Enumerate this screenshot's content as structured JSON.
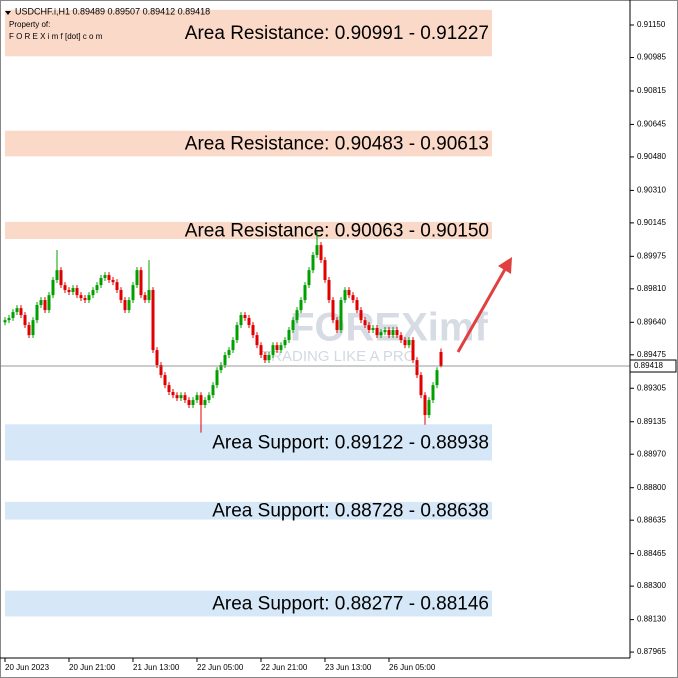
{
  "chart_data": {
    "type": "candlestick",
    "header": "USDCHF.i,H1  0.89489 0.89507 0.89412 0.89418",
    "owner_title": "Property of:",
    "owner": "F O R E X i m f [dot] c o m",
    "watermark": "FOREXimf",
    "watermark_tagline": "TRADING LIKE A PRO",
    "up_color": "#00a000",
    "down_color": "#e00000",
    "xlim": [
      -1.25,
      156.25
    ],
    "ylim": [
      0.87935,
      0.91277
    ],
    "xticks": [
      {
        "value": 0,
        "label": "20 Jun 2023"
      },
      {
        "value": 16,
        "label": "20 Jun 21:00"
      },
      {
        "value": 32,
        "label": "21 Jun 13:00"
      },
      {
        "value": 48,
        "label": "22 Jun 05:00"
      },
      {
        "value": 64,
        "label": "22 Jun 21:00"
      },
      {
        "value": 80,
        "label": "23 Jun 13:00"
      },
      {
        "value": 96,
        "label": "26 Jun 05:00"
      }
    ],
    "yticks": [
      {
        "value": 0.9115,
        "label": "0.91150"
      },
      0.90985,
      0.90815,
      0.90645,
      {
        "value": 0.9048,
        "label": "0.90480"
      },
      {
        "value": 0.9031,
        "label": "0.90310"
      },
      0.90145,
      0.89975,
      {
        "value": 0.8981,
        "label": "0.89810"
      },
      {
        "value": 0.8964,
        "label": "0.89640"
      },
      0.89475,
      0.89305,
      0.89135,
      {
        "value": 0.8897,
        "label": "0.88970"
      },
      {
        "value": 0.888,
        "label": "0.88800"
      },
      0.88635,
      0.88465,
      {
        "value": 0.883,
        "label": "0.88300"
      },
      {
        "value": 0.8813,
        "label": "0.88130"
      },
      0.87965
    ],
    "current_price": {
      "value": 0.89418,
      "label": "0.89418"
    },
    "zones": [
      {
        "label": "Area Resistance: 0.90991 - 0.91227",
        "from": 0.90991,
        "to": 0.91227,
        "color": "#fbd9c8"
      },
      {
        "label": "Area Resistance: 0.90483 - 0.90613",
        "from": 0.90483,
        "to": 0.90613,
        "color": "#fbd9c8"
      },
      {
        "label": "Area Resistance: 0.90063 - 0.90150",
        "from": 0.90063,
        "to": 0.9015,
        "color": "#fbd9c8"
      },
      {
        "label": "Area Support: 0.89122 - 0.88938",
        "from": 0.88938,
        "to": 0.89122,
        "color": "#d6e8f8"
      },
      {
        "label": "Area Support: 0.88728 - 0.88638",
        "from": 0.88638,
        "to": 0.88728,
        "color": "#d6e8f8"
      },
      {
        "label": "Area Support: 0.88277 - 0.88146",
        "from": 0.88146,
        "to": 0.88277,
        "color": "#d6e8f8"
      }
    ],
    "open": [
      0.8964,
      0.89651,
      0.89662,
      0.89692,
      0.89712,
      0.89677,
      0.89626,
      0.89575,
      0.89651,
      0.89728,
      0.89753,
      0.89702,
      0.89778,
      0.89855,
      0.89905,
      0.89829,
      0.89804,
      0.89794,
      0.89814,
      0.89778,
      0.89763,
      0.89753,
      0.89778,
      0.89804,
      0.89829,
      0.89865,
      0.8988,
      0.89855,
      0.89844,
      0.89804,
      0.89753,
      0.89702,
      0.89753,
      0.89829,
      0.89905,
      0.89778,
      0.89753,
      0.89804,
      0.89499,
      0.89423,
      0.89372,
      0.89321,
      0.89286,
      0.8927,
      0.89255,
      0.8927,
      0.89245,
      0.8922,
      0.89245,
      0.8927,
      0.8922,
      0.89245,
      0.8927,
      0.89321,
      0.89397,
      0.89423,
      0.89474,
      0.89499,
      0.8955,
      0.89626,
      0.89677,
      0.89662,
      0.89626,
      0.89575,
      0.89524,
      0.89474,
      0.89448,
      0.89474,
      0.89524,
      0.89499,
      0.89524,
      0.8955,
      0.89601,
      0.89651,
      0.89702,
      0.89753,
      0.89829,
      0.89905,
      0.89982,
      0.90032,
      0.89956,
      0.89855,
      0.89753,
      0.89651,
      0.89601,
      0.89753,
      0.89804,
      0.89778,
      0.89753,
      0.89702,
      0.89651,
      0.89626,
      0.89601,
      0.89611,
      0.89575,
      0.8959,
      0.89601,
      0.89575,
      0.89601,
      0.89575,
      0.8955,
      0.89524,
      0.8955,
      0.89448,
      0.89372,
      0.8927,
      0.89169,
      0.89245,
      0.89321,
      0.89489
    ],
    "high": [
      0.89666,
      0.89677,
      0.89707,
      0.89727,
      0.89727,
      0.89692,
      0.89641,
      0.89666,
      0.89743,
      0.89768,
      0.89768,
      0.89793,
      0.8987,
      0.90007,
      0.8992,
      0.89844,
      0.89819,
      0.89829,
      0.89829,
      0.89793,
      0.89778,
      0.89793,
      0.89819,
      0.89844,
      0.8988,
      0.89895,
      0.89895,
      0.8987,
      0.89859,
      0.89819,
      0.89768,
      0.89768,
      0.89844,
      0.8992,
      0.8992,
      0.89793,
      0.89956,
      0.89819,
      0.89514,
      0.89438,
      0.89387,
      0.89336,
      0.89301,
      0.89285,
      0.89285,
      0.89285,
      0.8926,
      0.8926,
      0.89285,
      0.89285,
      0.8926,
      0.89285,
      0.89336,
      0.89412,
      0.89438,
      0.89489,
      0.89514,
      0.89565,
      0.89641,
      0.89692,
      0.89692,
      0.89677,
      0.89641,
      0.8959,
      0.89539,
      0.89489,
      0.89489,
      0.89539,
      0.89539,
      0.89539,
      0.89565,
      0.89616,
      0.89666,
      0.89717,
      0.89768,
      0.89844,
      0.8992,
      0.89997,
      0.901,
      0.90047,
      0.89971,
      0.8987,
      0.89768,
      0.89666,
      0.89768,
      0.89819,
      0.89819,
      0.89793,
      0.89768,
      0.89717,
      0.89666,
      0.89641,
      0.89626,
      0.89626,
      0.89605,
      0.89616,
      0.89616,
      0.89616,
      0.89616,
      0.8959,
      0.89565,
      0.89565,
      0.89565,
      0.89463,
      0.89387,
      0.89285,
      0.8926,
      0.89336,
      0.89412,
      0.89507
    ],
    "low": [
      0.89625,
      0.89636,
      0.89647,
      0.89677,
      0.89662,
      0.89611,
      0.8956,
      0.8956,
      0.89636,
      0.89713,
      0.89687,
      0.89687,
      0.89763,
      0.8984,
      0.89814,
      0.89789,
      0.89779,
      0.89779,
      0.89763,
      0.89748,
      0.89738,
      0.89738,
      0.89763,
      0.89789,
      0.89814,
      0.8985,
      0.8984,
      0.89829,
      0.89789,
      0.89738,
      0.89687,
      0.89687,
      0.89738,
      0.89814,
      0.89763,
      0.89738,
      0.89738,
      0.89484,
      0.89408,
      0.89357,
      0.89306,
      0.89271,
      0.89255,
      0.8924,
      0.8924,
      0.8923,
      0.89205,
      0.89205,
      0.8923,
      0.8908,
      0.89205,
      0.8923,
      0.89255,
      0.89306,
      0.89382,
      0.89408,
      0.89459,
      0.89484,
      0.89535,
      0.89611,
      0.89647,
      0.89611,
      0.8956,
      0.89509,
      0.89459,
      0.89433,
      0.89433,
      0.89459,
      0.89484,
      0.89484,
      0.89509,
      0.89535,
      0.89586,
      0.89636,
      0.89687,
      0.89738,
      0.89814,
      0.8989,
      0.89967,
      0.89941,
      0.8984,
      0.89738,
      0.89636,
      0.89586,
      0.89586,
      0.89738,
      0.89763,
      0.89738,
      0.89687,
      0.89636,
      0.89611,
      0.89586,
      0.89586,
      0.8956,
      0.8956,
      0.89575,
      0.8956,
      0.8956,
      0.8956,
      0.89535,
      0.89509,
      0.89509,
      0.89433,
      0.89357,
      0.89255,
      0.8912,
      0.89154,
      0.8923,
      0.89306,
      0.89412
    ],
    "close": [
      0.89651,
      0.89662,
      0.89692,
      0.89712,
      0.89677,
      0.89626,
      0.89575,
      0.89651,
      0.89728,
      0.89753,
      0.89702,
      0.89778,
      0.89855,
      0.89905,
      0.89829,
      0.89804,
      0.89794,
      0.89814,
      0.89778,
      0.89763,
      0.89753,
      0.89778,
      0.89804,
      0.89829,
      0.89865,
      0.8988,
      0.89855,
      0.89844,
      0.89804,
      0.89753,
      0.89702,
      0.89753,
      0.89829,
      0.89905,
      0.89778,
      0.89753,
      0.89804,
      0.89499,
      0.89423,
      0.89372,
      0.89321,
      0.89286,
      0.8927,
      0.89255,
      0.8927,
      0.89245,
      0.8922,
      0.89245,
      0.8927,
      0.8922,
      0.89245,
      0.8927,
      0.89321,
      0.89397,
      0.89423,
      0.89474,
      0.89499,
      0.8955,
      0.89626,
      0.89677,
      0.89662,
      0.89626,
      0.89575,
      0.89524,
      0.89474,
      0.89448,
      0.89474,
      0.89524,
      0.89499,
      0.89524,
      0.8955,
      0.89601,
      0.89651,
      0.89702,
      0.89753,
      0.89829,
      0.89905,
      0.89982,
      0.90032,
      0.89956,
      0.89855,
      0.89753,
      0.89651,
      0.89601,
      0.89753,
      0.89804,
      0.89778,
      0.89753,
      0.89702,
      0.89651,
      0.89626,
      0.89601,
      0.89611,
      0.89575,
      0.8959,
      0.89601,
      0.89575,
      0.89601,
      0.89575,
      0.8955,
      0.89524,
      0.8955,
      0.89448,
      0.89372,
      0.8927,
      0.89169,
      0.89245,
      0.89321,
      0.89397,
      0.89418
    ]
  }
}
